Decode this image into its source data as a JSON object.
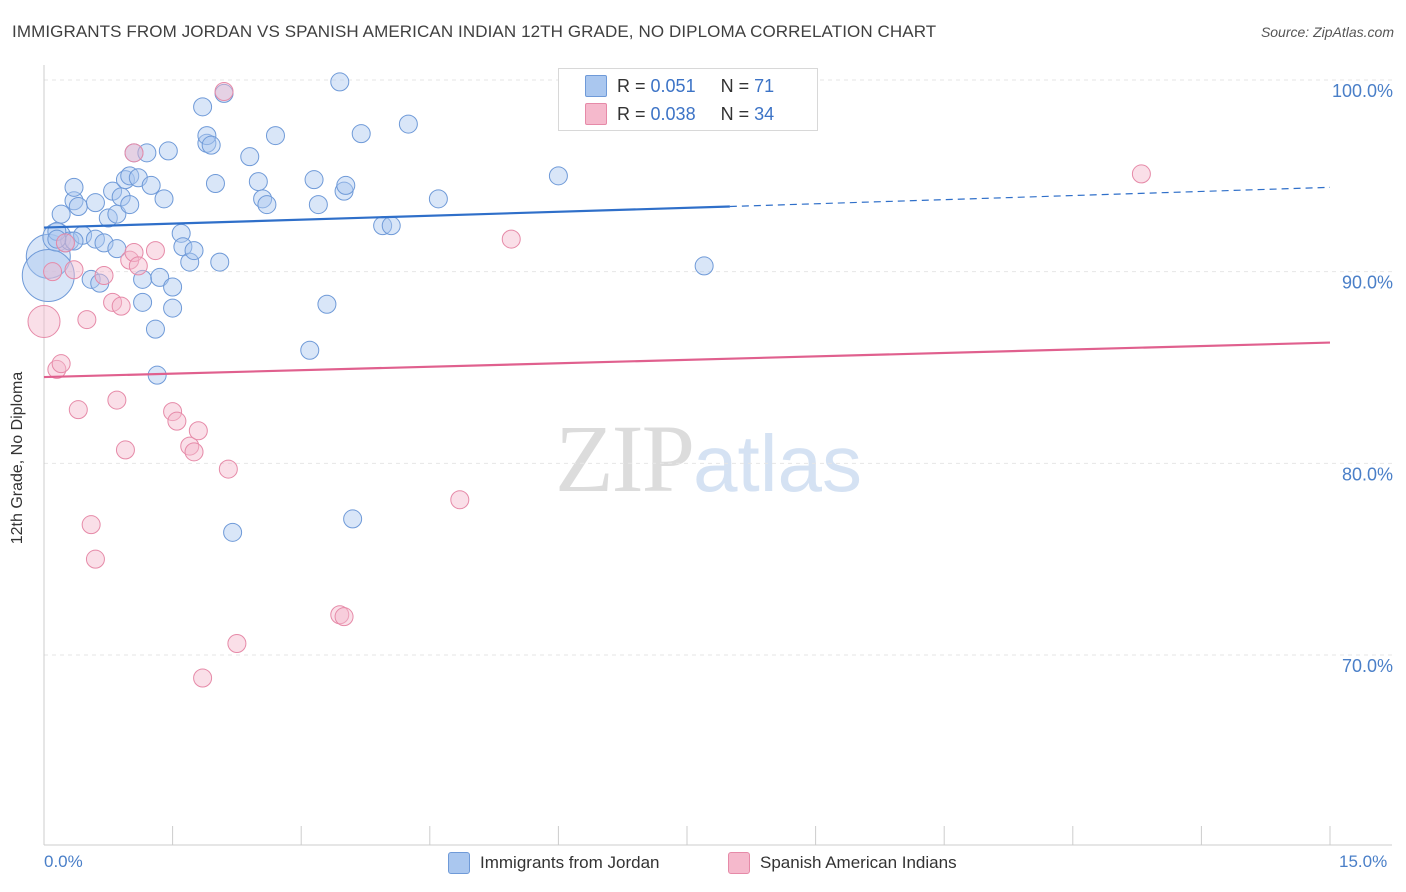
{
  "title": "IMMIGRANTS FROM JORDAN VS SPANISH AMERICAN INDIAN 12TH GRADE, NO DIPLOMA CORRELATION CHART",
  "source": "Source: ZipAtlas.com",
  "watermark": {
    "zip": "ZIP",
    "atlas": "atlas"
  },
  "legend_top": {
    "rows": [
      {
        "r_label": "R =",
        "r_value": "0.051",
        "n_label": "N =",
        "n_value": "71"
      },
      {
        "r_label": "R =",
        "r_value": "0.038",
        "n_label": "N =",
        "n_value": "34"
      }
    ]
  },
  "colors": {
    "blue_fill": "#aac7ef",
    "blue_stroke": "#6f9ad8",
    "blue_line": "#2f6fc9",
    "pink_fill": "#f5b9cc",
    "pink_stroke": "#e68aa8",
    "pink_line": "#e0608e",
    "grid": "#e6e6e6",
    "tick_label": "#4a7fc8"
  },
  "chart_data": {
    "type": "scatter",
    "title": "IMMIGRANTS FROM JORDAN VS SPANISH AMERICAN INDIAN 12TH GRADE, NO DIPLOMA CORRELATION CHART",
    "xlabel": "",
    "ylabel": "12th Grade, No Diploma",
    "xlim": [
      0,
      15
    ],
    "ylim": [
      60.5,
      101.5
    ],
    "x_tick_labels": [
      "0.0%",
      "15.0%"
    ],
    "y_ticks": [
      100,
      90,
      80,
      70
    ],
    "y_tick_labels": [
      "100.0%",
      "90.0%",
      "80.0%",
      "70.0%"
    ],
    "grid": true,
    "series": [
      {
        "name": "Immigrants from Jordan",
        "color": "blue",
        "trend": {
          "x0": 0,
          "y0": 92.3,
          "x1": 8.0,
          "y1": 93.4,
          "dash_to_x": 15,
          "dash_to_y": 94.4
        },
        "points": [
          [
            0.05,
            90.8,
            22
          ],
          [
            0.05,
            89.8,
            26
          ],
          [
            0.15,
            91.8,
            14
          ],
          [
            0.2,
            93.0,
            9
          ],
          [
            0.25,
            91.5,
            9
          ],
          [
            0.3,
            91.6,
            9
          ],
          [
            0.35,
            93.7,
            9
          ],
          [
            0.35,
            94.4,
            9
          ],
          [
            0.4,
            93.4,
            9
          ],
          [
            0.45,
            91.9,
            9
          ],
          [
            0.55,
            89.6,
            9
          ],
          [
            0.6,
            93.6,
            9
          ],
          [
            0.6,
            91.7,
            9
          ],
          [
            0.65,
            89.4,
            9
          ],
          [
            0.7,
            91.5,
            9
          ],
          [
            0.75,
            92.8,
            9
          ],
          [
            0.8,
            94.2,
            9
          ],
          [
            0.85,
            93.0,
            9
          ],
          [
            0.85,
            91.2,
            9
          ],
          [
            0.9,
            93.9,
            9
          ],
          [
            0.95,
            94.8,
            9
          ],
          [
            1.0,
            95.0,
            9
          ],
          [
            1.0,
            93.5,
            9
          ],
          [
            1.05,
            96.2,
            9
          ],
          [
            1.1,
            94.9,
            9
          ],
          [
            1.15,
            89.6,
            9
          ],
          [
            1.15,
            88.4,
            9
          ],
          [
            1.2,
            96.2,
            9
          ],
          [
            1.25,
            94.5,
            9
          ],
          [
            1.3,
            87.0,
            9
          ],
          [
            1.32,
            84.6,
            9
          ],
          [
            1.35,
            89.7,
            9
          ],
          [
            1.4,
            93.8,
            9
          ],
          [
            1.45,
            96.3,
            9
          ],
          [
            1.5,
            89.2,
            9
          ],
          [
            1.5,
            88.1,
            9
          ],
          [
            1.6,
            92.0,
            9
          ],
          [
            1.62,
            91.3,
            9
          ],
          [
            1.7,
            90.5,
            9
          ],
          [
            1.75,
            91.1,
            9
          ],
          [
            1.85,
            98.6,
            9
          ],
          [
            1.9,
            96.7,
            9
          ],
          [
            1.9,
            97.1,
            9
          ],
          [
            1.95,
            96.6,
            9
          ],
          [
            2.0,
            94.6,
            9
          ],
          [
            2.05,
            90.5,
            9
          ],
          [
            2.1,
            99.3,
            9
          ],
          [
            2.2,
            76.4,
            9
          ],
          [
            2.4,
            96.0,
            9
          ],
          [
            2.5,
            94.7,
            9
          ],
          [
            2.55,
            93.8,
            9
          ],
          [
            2.6,
            93.5,
            9
          ],
          [
            2.7,
            97.1,
            9
          ],
          [
            3.1,
            85.9,
            9
          ],
          [
            3.15,
            94.8,
            9
          ],
          [
            3.2,
            93.5,
            9
          ],
          [
            3.3,
            88.3,
            9
          ],
          [
            3.45,
            99.9,
            9
          ],
          [
            3.5,
            94.2,
            9
          ],
          [
            3.52,
            94.5,
            9
          ],
          [
            3.6,
            77.1,
            9
          ],
          [
            3.7,
            97.2,
            9
          ],
          [
            3.95,
            92.4,
            9
          ],
          [
            4.05,
            92.4,
            9
          ],
          [
            4.25,
            97.7,
            9
          ],
          [
            4.6,
            93.8,
            9
          ],
          [
            6.0,
            95.0,
            9
          ],
          [
            7.7,
            90.3,
            9
          ],
          [
            0.15,
            92.1,
            9
          ],
          [
            0.35,
            91.6,
            9
          ],
          [
            0.15,
            91.7,
            9
          ]
        ]
      },
      {
        "name": "Spanish American Indians",
        "color": "pink",
        "trend": {
          "x0": 0,
          "y0": 84.5,
          "x1": 15,
          "y1": 86.3
        },
        "points": [
          [
            0.0,
            87.4,
            16
          ],
          [
            0.1,
            90.0,
            9
          ],
          [
            0.15,
            84.9,
            9
          ],
          [
            0.2,
            85.2,
            9
          ],
          [
            0.25,
            91.5,
            9
          ],
          [
            0.35,
            90.1,
            9
          ],
          [
            0.4,
            82.8,
            9
          ],
          [
            0.5,
            87.5,
            9
          ],
          [
            0.55,
            76.8,
            9
          ],
          [
            0.6,
            75.0,
            9
          ],
          [
            0.7,
            89.8,
            9
          ],
          [
            0.8,
            88.4,
            9
          ],
          [
            0.85,
            83.3,
            9
          ],
          [
            0.9,
            88.2,
            9
          ],
          [
            0.95,
            80.7,
            9
          ],
          [
            1.05,
            96.2,
            9
          ],
          [
            1.0,
            90.6,
            9
          ],
          [
            1.05,
            91.0,
            9
          ],
          [
            1.1,
            90.3,
            9
          ],
          [
            1.3,
            91.1,
            9
          ],
          [
            1.5,
            82.7,
            9
          ],
          [
            1.55,
            82.2,
            9
          ],
          [
            1.7,
            80.9,
            9
          ],
          [
            1.75,
            80.6,
            9
          ],
          [
            1.8,
            81.7,
            9
          ],
          [
            1.85,
            68.8,
            9
          ],
          [
            2.1,
            99.4,
            9
          ],
          [
            2.15,
            79.7,
            9
          ],
          [
            2.25,
            70.6,
            9
          ],
          [
            3.45,
            72.1,
            9
          ],
          [
            3.5,
            72.0,
            9
          ],
          [
            4.85,
            78.1,
            9
          ],
          [
            5.45,
            91.7,
            9
          ],
          [
            12.8,
            95.1,
            9
          ]
        ]
      }
    ]
  },
  "legend_bottom": {
    "items": [
      {
        "label": "Immigrants from Jordan"
      },
      {
        "label": "Spanish American Indians"
      }
    ]
  }
}
